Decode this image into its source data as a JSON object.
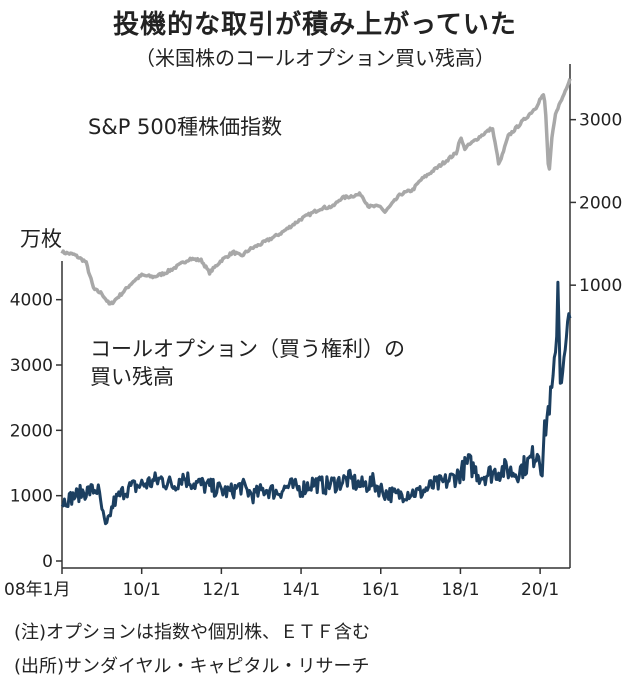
{
  "header": {
    "title": "投機的な取引が積み上がっていた",
    "subtitle": "（米国株のコールオプション買い残高）"
  },
  "notes": {
    "note": "(注)オプションは指数や個別株、ＥＴＦ含む",
    "source": "(出所)サンダイヤル・キャピタル・リサーチ"
  },
  "chart_data": {
    "type": "line",
    "x_tick_labels": [
      "08年1月",
      "10/1",
      "12/1",
      "14/1",
      "16/1",
      "18/1",
      "20/1"
    ],
    "x_tick_years": [
      2008.0,
      2010.0,
      2012.0,
      2014.0,
      2016.0,
      2018.0,
      2020.0
    ],
    "xlim": [
      2008.0,
      2020.75
    ],
    "series": [
      {
        "name": "S&P 500種株価指数",
        "axis": "right",
        "color": "#a8a8a8",
        "x": [
          2008.0,
          2008.3,
          2008.6,
          2008.8,
          2009.0,
          2009.2,
          2009.5,
          2009.8,
          2010.0,
          2010.3,
          2010.6,
          2010.9,
          2011.2,
          2011.5,
          2011.7,
          2011.9,
          2012.0,
          2012.3,
          2012.5,
          2012.7,
          2013.0,
          2013.5,
          2014.0,
          2014.5,
          2014.8,
          2015.0,
          2015.5,
          2015.7,
          2016.0,
          2016.1,
          2016.5,
          2016.8,
          2017.0,
          2017.5,
          2017.9,
          2018.0,
          2018.1,
          2018.5,
          2018.8,
          2018.97,
          2019.2,
          2019.5,
          2019.9,
          2020.0,
          2020.1,
          2020.15,
          2020.22,
          2020.3,
          2020.4,
          2020.55,
          2020.75
        ],
        "y": [
          1400,
          1370,
          1280,
          950,
          900,
          760,
          900,
          1050,
          1120,
          1100,
          1150,
          1230,
          1320,
          1300,
          1150,
          1250,
          1300,
          1400,
          1350,
          1430,
          1500,
          1630,
          1800,
          1930,
          1950,
          2050,
          2100,
          1950,
          1950,
          1880,
          2100,
          2150,
          2270,
          2450,
          2600,
          2790,
          2650,
          2800,
          2900,
          2450,
          2800,
          2950,
          3150,
          3250,
          3300,
          3000,
          2300,
          2800,
          3100,
          3250,
          3500
        ]
      },
      {
        "name": "コールオプション（買う権利）の買い残高",
        "axis": "left",
        "color": "#1c3f60",
        "x": [
          2008.0,
          2008.5,
          2008.9,
          2009.1,
          2009.3,
          2009.6,
          2009.9,
          2010.2,
          2010.5,
          2010.8,
          2011.0,
          2011.3,
          2011.6,
          2011.9,
          2012.2,
          2012.5,
          2012.8,
          2013.1,
          2013.4,
          2013.7,
          2014.0,
          2014.3,
          2014.6,
          2014.9,
          2015.2,
          2015.5,
          2015.8,
          2016.1,
          2016.4,
          2016.7,
          2017.0,
          2017.3,
          2017.6,
          2017.9,
          2018.0,
          2018.2,
          2018.5,
          2018.8,
          2019.1,
          2019.4,
          2019.7,
          2019.95,
          2020.05,
          2020.1,
          2020.2,
          2020.3,
          2020.4,
          2020.45,
          2020.5,
          2020.6,
          2020.7,
          2020.75
        ],
        "y": [
          900,
          1050,
          1100,
          500,
          900,
          1100,
          1150,
          1200,
          1250,
          1150,
          1300,
          1200,
          1150,
          1100,
          1050,
          1150,
          1000,
          1100,
          1050,
          1150,
          1100,
          1200,
          1150,
          1200,
          1250,
          1150,
          1200,
          1050,
          1000,
          1050,
          1050,
          1150,
          1200,
          1300,
          1350,
          1500,
          1300,
          1350,
          1400,
          1350,
          1500,
          1700,
          1400,
          1900,
          2300,
          2600,
          3200,
          4400,
          2800,
          3000,
          3600,
          3700
        ]
      }
    ],
    "series_labels": {
      "sp500": "S&P 500種株価指数",
      "calls_line1": "コールオプション（買う権利）の",
      "calls_line2": "買い残高"
    },
    "left_axis": {
      "unit": "万枚",
      "ylim": [
        0,
        4500
      ],
      "ticks": [
        0,
        1000,
        2000,
        3000,
        4000
      ],
      "tick_labels": [
        "0",
        "1000",
        "2000",
        "3000",
        "4000"
      ]
    },
    "right_axis": {
      "ylim": [
        700,
        3600
      ],
      "ticks": [
        1000,
        2000,
        3000
      ],
      "tick_labels": [
        "1000",
        "2000",
        "3000"
      ]
    },
    "grid": false
  }
}
